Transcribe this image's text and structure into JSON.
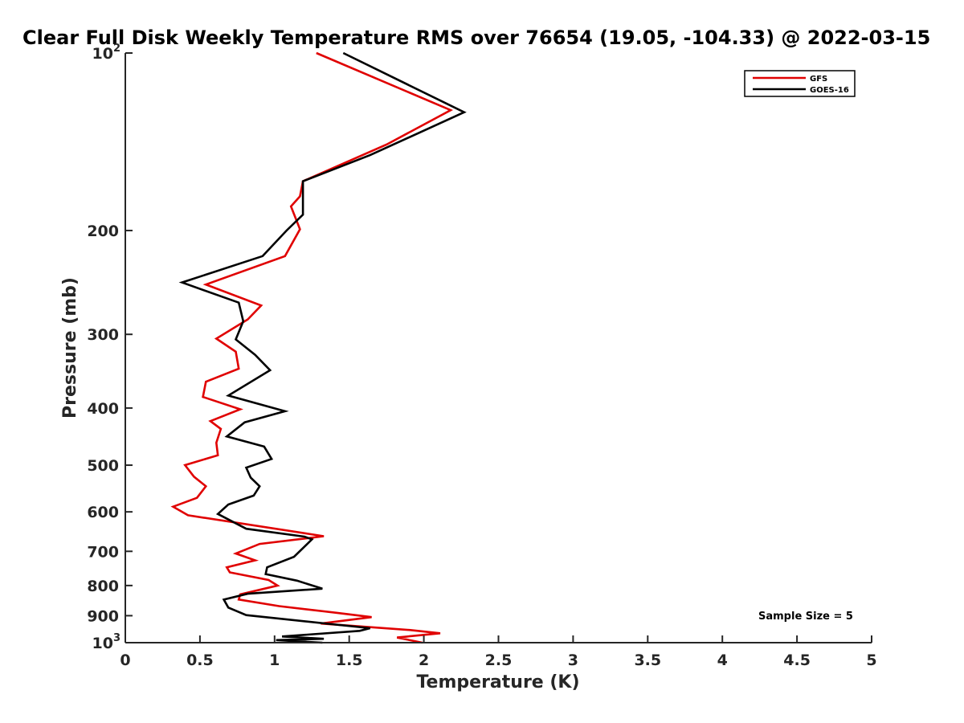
{
  "chart_data": {
    "type": "line",
    "title": "Clear Full Disk Weekly Temperature RMS over 76654 (19.05, -104.33) @ 2022-03-15",
    "xlabel": "Temperature (K)",
    "ylabel": "Pressure (mb)",
    "xlim": [
      0,
      5
    ],
    "ylim": [
      100,
      1000
    ],
    "yscale": "log",
    "yreversed": true,
    "xticks": [
      "0",
      "0.5",
      "1",
      "1.5",
      "2",
      "2.5",
      "3",
      "3.5",
      "4",
      "4.5",
      "5"
    ],
    "yticks": [
      {
        "value": 100,
        "label": "10",
        "sup": "2"
      },
      {
        "value": 200,
        "label": "200",
        "sup": ""
      },
      {
        "value": 300,
        "label": "300",
        "sup": ""
      },
      {
        "value": 400,
        "label": "400",
        "sup": ""
      },
      {
        "value": 500,
        "label": "500",
        "sup": ""
      },
      {
        "value": 600,
        "label": "600",
        "sup": ""
      },
      {
        "value": 700,
        "label": "700",
        "sup": ""
      },
      {
        "value": 800,
        "label": "800",
        "sup": ""
      },
      {
        "value": 900,
        "label": "900",
        "sup": ""
      },
      {
        "value": 1000,
        "label": "10",
        "sup": "3"
      }
    ],
    "legend_position": "top-right",
    "annotation": "Sample Size = 5",
    "series": [
      {
        "name": "GFS",
        "color": "#e00000",
        "points": [
          [
            1.28,
            100
          ],
          [
            2.18,
            125
          ],
          [
            1.75,
            143
          ],
          [
            1.19,
            165
          ],
          [
            1.17,
            175
          ],
          [
            1.11,
            182
          ],
          [
            1.17,
            199
          ],
          [
            1.07,
            221
          ],
          [
            0.54,
            247
          ],
          [
            0.91,
            268
          ],
          [
            0.82,
            283
          ],
          [
            0.61,
            305
          ],
          [
            0.74,
            321
          ],
          [
            0.76,
            343
          ],
          [
            0.54,
            361
          ],
          [
            0.52,
            383
          ],
          [
            0.77,
            402
          ],
          [
            0.57,
            421
          ],
          [
            0.64,
            434
          ],
          [
            0.61,
            458
          ],
          [
            0.62,
            481
          ],
          [
            0.4,
            500
          ],
          [
            0.46,
            523
          ],
          [
            0.54,
            543
          ],
          [
            0.48,
            568
          ],
          [
            0.32,
            588
          ],
          [
            0.42,
            608
          ],
          [
            1.33,
            660
          ],
          [
            0.9,
            680
          ],
          [
            0.74,
            706
          ],
          [
            0.87,
            725
          ],
          [
            0.68,
            745
          ],
          [
            0.7,
            760
          ],
          [
            0.96,
            783
          ],
          [
            1.02,
            800
          ],
          [
            0.77,
            828
          ],
          [
            0.76,
            845
          ],
          [
            1.03,
            867
          ],
          [
            1.42,
            890
          ],
          [
            1.65,
            905
          ],
          [
            1.31,
            928
          ],
          [
            1.91,
            952
          ],
          [
            2.11,
            964
          ],
          [
            1.82,
            980
          ],
          [
            1.99,
            1000
          ]
        ]
      },
      {
        "name": "GOES-16",
        "color": "#000000",
        "points": [
          [
            1.46,
            100
          ],
          [
            2.27,
            126
          ],
          [
            1.64,
            149
          ],
          [
            1.19,
            165
          ],
          [
            1.19,
            188
          ],
          [
            1.08,
            200
          ],
          [
            0.92,
            221
          ],
          [
            0.38,
            245
          ],
          [
            0.76,
            265
          ],
          [
            0.79,
            285
          ],
          [
            0.74,
            306
          ],
          [
            0.87,
            325
          ],
          [
            0.97,
            345
          ],
          [
            0.69,
            381
          ],
          [
            1.07,
            405
          ],
          [
            0.8,
            423
          ],
          [
            0.68,
            447
          ],
          [
            0.93,
            465
          ],
          [
            0.98,
            488
          ],
          [
            0.81,
            505
          ],
          [
            0.84,
            525
          ],
          [
            0.9,
            543
          ],
          [
            0.86,
            563
          ],
          [
            0.69,
            583
          ],
          [
            0.62,
            605
          ],
          [
            0.81,
            641
          ],
          [
            1.2,
            661
          ],
          [
            1.25,
            668
          ],
          [
            1.13,
            715
          ],
          [
            0.95,
            745
          ],
          [
            0.94,
            765
          ],
          [
            1.15,
            785
          ],
          [
            1.32,
            810
          ],
          [
            0.82,
            826
          ],
          [
            0.66,
            845
          ],
          [
            0.69,
            872
          ],
          [
            0.81,
            898
          ],
          [
            1.64,
            945
          ],
          [
            1.57,
            955
          ],
          [
            1.05,
            976
          ],
          [
            1.33,
            985
          ],
          [
            1.01,
            990
          ],
          [
            1.32,
            1000
          ]
        ]
      }
    ]
  }
}
